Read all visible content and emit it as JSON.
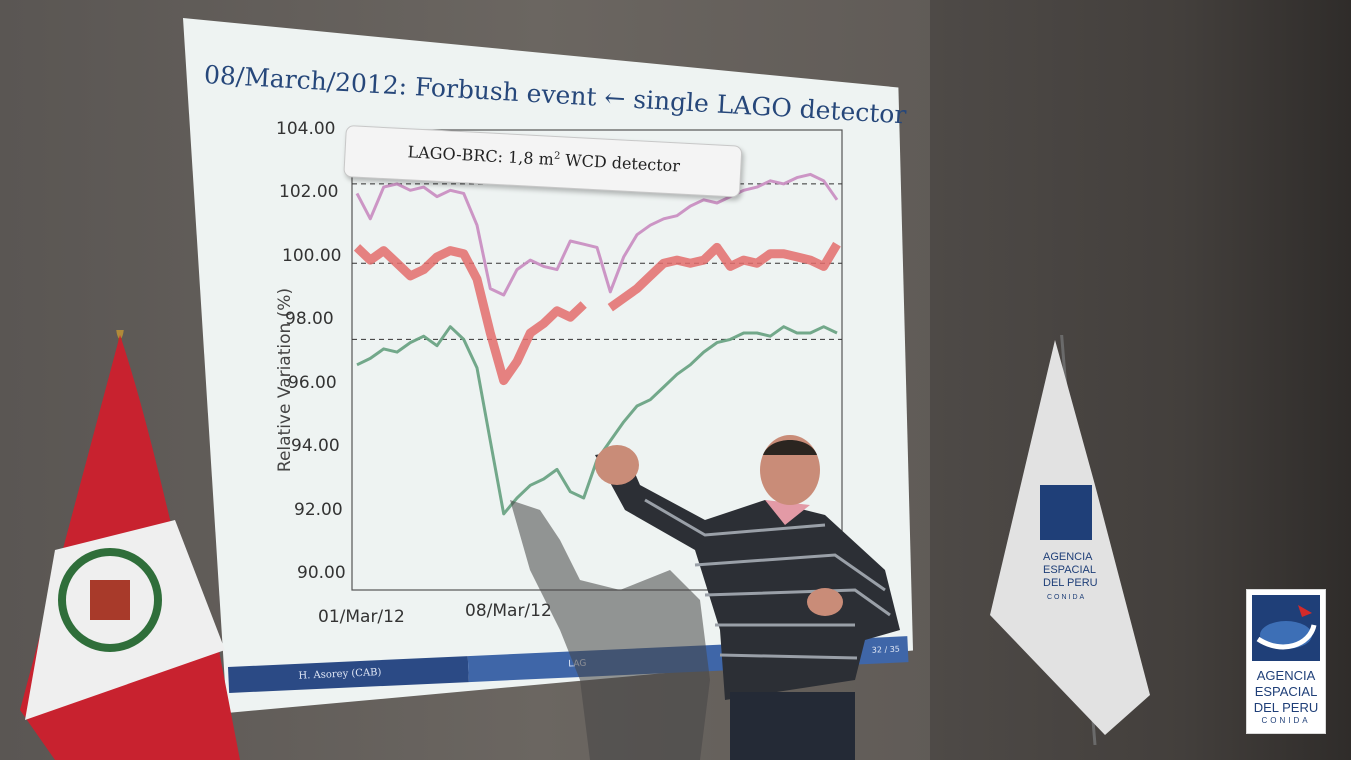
{
  "slide": {
    "title": "08/March/2012: Forbush event ← single LAGO detector",
    "legend_prefix": "LAGO-BRC: 1,8 m",
    "legend_sup": "2",
    "legend_suffix": " WCD detector",
    "footer_author": "H. Asorey (CAB)",
    "footer_mid": "LAG",
    "footer_page": "32 / 35"
  },
  "chart_data": {
    "type": "line",
    "title": "",
    "xlabel": "",
    "ylabel": "Relative Variation (%)",
    "ylim": [
      89.5,
      104
    ],
    "y_ticks": [
      "104.00",
      "102.00",
      "100.00",
      "98.00",
      "96.00",
      "94.00",
      "92.00",
      "90.00"
    ],
    "x_ticks": [
      "01/Mar/12",
      "08/Mar/12"
    ],
    "series": [
      {
        "name": "",
        "color": "#c98fc2",
        "values": [
          102.0,
          101.2,
          102.2,
          102.3,
          102.1,
          102.2,
          101.9,
          102.1,
          102.0,
          101.0,
          99.0,
          98.8,
          99.6,
          99.9,
          99.7,
          99.6,
          100.5,
          100.4,
          100.3,
          98.9,
          100.0,
          100.7,
          101.0,
          101.2,
          101.3,
          101.6,
          101.8,
          101.7,
          101.9,
          102.1,
          102.2,
          102.4,
          102.3,
          102.5,
          102.6,
          102.4,
          101.8
        ]
      },
      {
        "name": "",
        "color": "#e36c6c",
        "values": [
          100.3,
          99.9,
          100.2,
          99.8,
          99.4,
          99.6,
          100.0,
          100.2,
          100.1,
          99.3,
          97.6,
          96.1,
          96.7,
          97.6,
          97.9,
          98.3,
          98.1,
          98.5,
          null,
          98.4,
          98.7,
          99.0,
          99.4,
          99.8,
          99.9,
          99.8,
          99.9,
          100.3,
          99.7,
          99.9,
          99.8,
          100.1,
          100.1,
          100.0,
          99.9,
          99.7,
          100.4
        ]
      },
      {
        "name": "",
        "color": "#6aa384",
        "values": [
          96.6,
          96.8,
          97.1,
          97.0,
          97.3,
          97.5,
          97.2,
          97.8,
          97.4,
          96.5,
          94.2,
          91.9,
          92.4,
          92.8,
          93.0,
          93.3,
          92.6,
          92.4,
          93.6,
          94.2,
          94.8,
          95.3,
          95.5,
          95.9,
          96.3,
          96.6,
          97.0,
          97.3,
          97.4,
          97.6,
          97.6,
          97.5,
          97.8,
          97.6,
          97.6,
          97.8,
          97.6
        ]
      }
    ],
    "reference_lines": [
      102.3,
      99.8,
      97.4
    ]
  },
  "logo": {
    "line1": "AGENCIA",
    "line2": "ESPACIAL",
    "line3": "DEL PERU",
    "line4": "CONIDA"
  },
  "flag_logo": {
    "line1": "AGENCIA",
    "line2": "ESPACIAL",
    "line3": "DEL PERU",
    "line4": "CONIDA"
  },
  "colors": {
    "peru_red": "#c8222f",
    "conida_blue": "#1f3f78",
    "title_blue": "#26477a"
  }
}
